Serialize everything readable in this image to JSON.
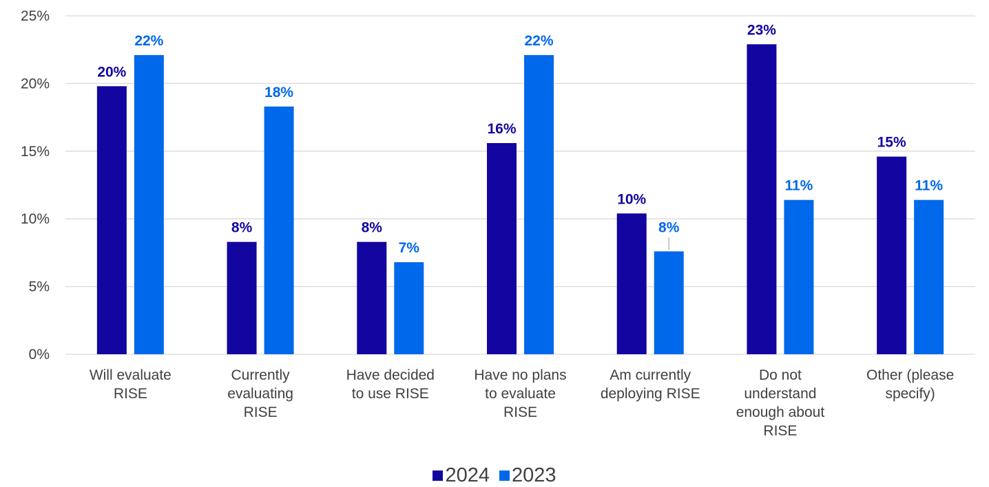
{
  "chart_data": {
    "type": "bar",
    "title": "",
    "xlabel": "",
    "ylabel": "",
    "ylim": [
      0,
      0.25
    ],
    "y_ticks": [
      "0%",
      "5%",
      "10%",
      "15%",
      "20%",
      "25%"
    ],
    "grid": true,
    "legend_position": "bottom",
    "categories": [
      "Will evaluate RISE",
      "Currently evaluating RISE",
      "Have decided to use RISE",
      "Have no plans to evaluate RISE",
      "Am currently deploying RISE",
      "Do not understand enough about RISE",
      "Other (please specify)"
    ],
    "category_lines": [
      [
        "Will evaluate",
        "RISE"
      ],
      [
        "Currently",
        "evaluating",
        "RISE"
      ],
      [
        "Have decided",
        "to use RISE"
      ],
      [
        "Have no plans",
        "to evaluate",
        "RISE"
      ],
      [
        "Am currently",
        "deploying RISE"
      ],
      [
        "Do not",
        "understand",
        "enough about",
        "RISE"
      ],
      [
        "Other (please",
        "specify)"
      ]
    ],
    "series": [
      {
        "name": "2024",
        "color": "#1305a0",
        "values": [
          0.198,
          0.083,
          0.083,
          0.156,
          0.104,
          0.229,
          0.146
        ],
        "labels": [
          "20%",
          "8%",
          "8%",
          "16%",
          "10%",
          "23%",
          "15%"
        ]
      },
      {
        "name": "2023",
        "color": "#0068ea",
        "values": [
          0.221,
          0.183,
          0.068,
          0.221,
          0.076,
          0.114,
          0.114
        ],
        "labels": [
          "22%",
          "18%",
          "7%",
          "22%",
          "8%",
          "11%",
          "11%"
        ]
      }
    ],
    "colors": {
      "gridline": "#d9d9d9",
      "axis_text": "#404040"
    }
  }
}
